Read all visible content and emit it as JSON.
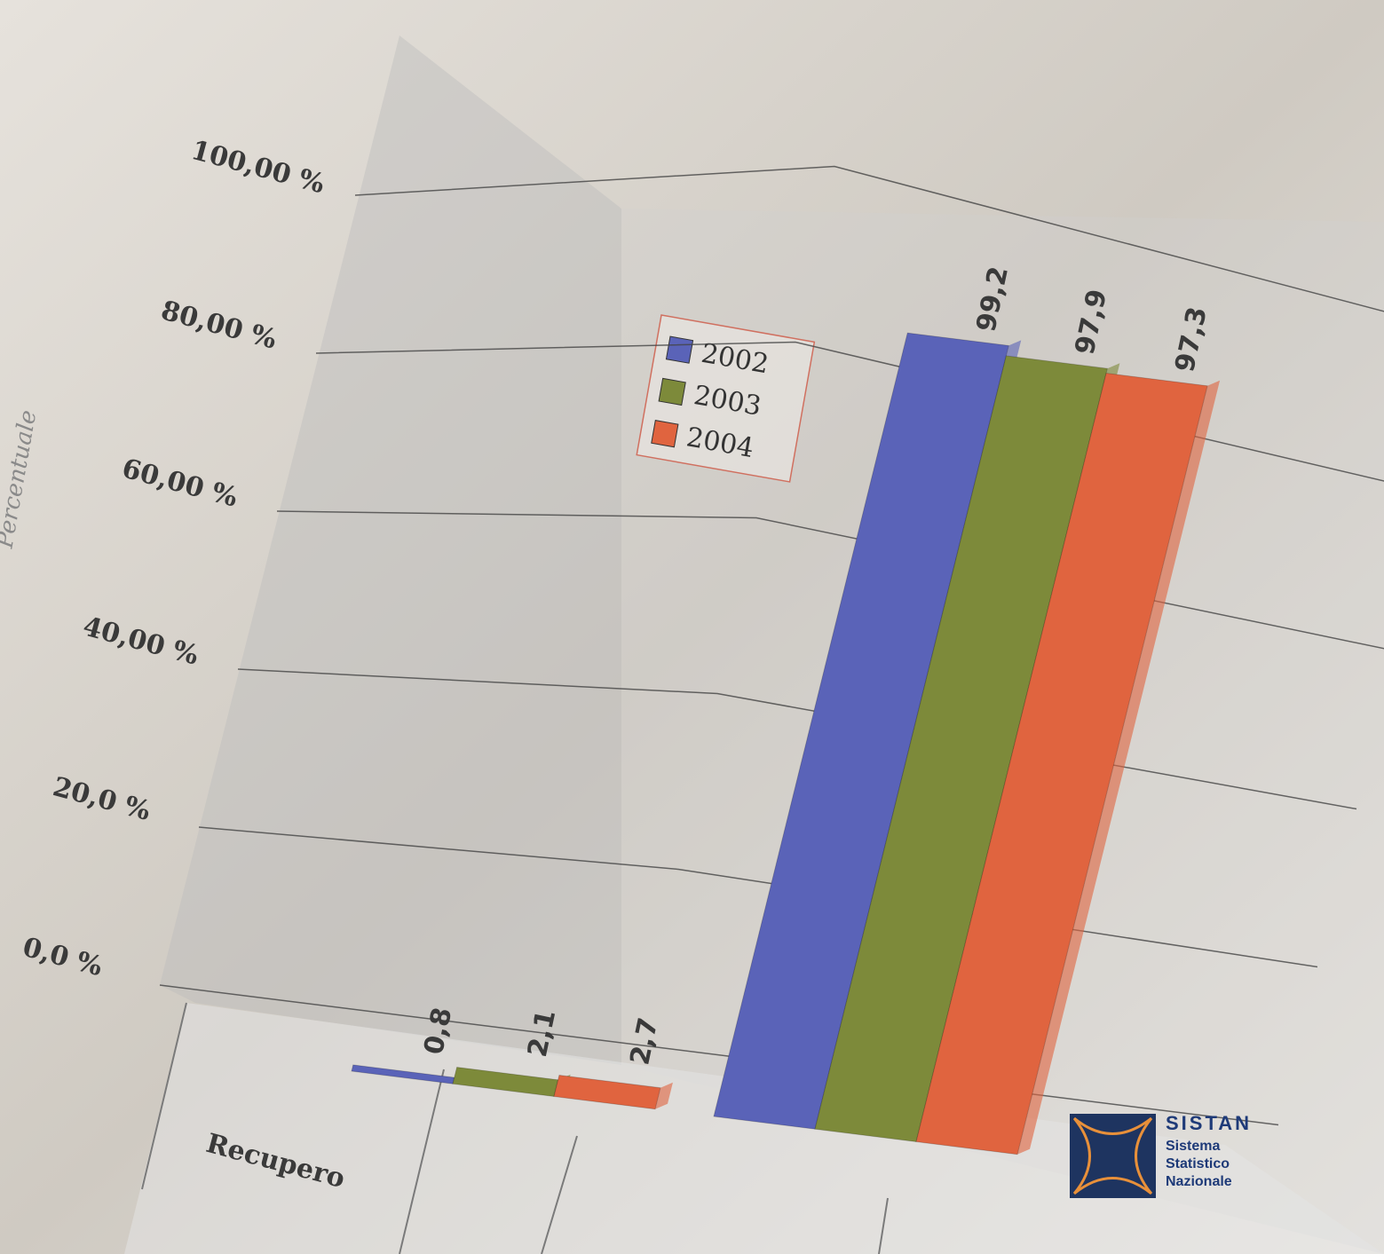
{
  "chart_data": {
    "type": "bar3d",
    "y_label": "Percentuale",
    "categories": [
      "Recupero",
      null
    ],
    "series": [
      {
        "name": "2002",
        "color": "#5a63b8",
        "values": [
          0.8,
          99.2
        ],
        "value_labels": [
          "0,8",
          "99,2"
        ]
      },
      {
        "name": "2003",
        "color": "#7d8a3a",
        "values": [
          2.1,
          97.9
        ],
        "value_labels": [
          "2,1",
          "97,9"
        ]
      },
      {
        "name": "2004",
        "color": "#e0643f",
        "values": [
          2.7,
          97.3
        ],
        "value_labels": [
          "2,7",
          "97,3"
        ]
      }
    ],
    "ylim": [
      0,
      100
    ],
    "yticks": [
      {
        "value": 0,
        "label": "0,0 %"
      },
      {
        "value": 20,
        "label": "20,0 %"
      },
      {
        "value": 40,
        "label": "40,00 %"
      },
      {
        "value": 60,
        "label": "60,00 %"
      },
      {
        "value": 80,
        "label": "80,00 %"
      },
      {
        "value": 100,
        "label": "100,00 %"
      }
    ],
    "grid": true
  },
  "logo": {
    "title": "SISTAN",
    "lines": [
      "Sistema",
      "Statistico",
      "Nazionale"
    ]
  }
}
